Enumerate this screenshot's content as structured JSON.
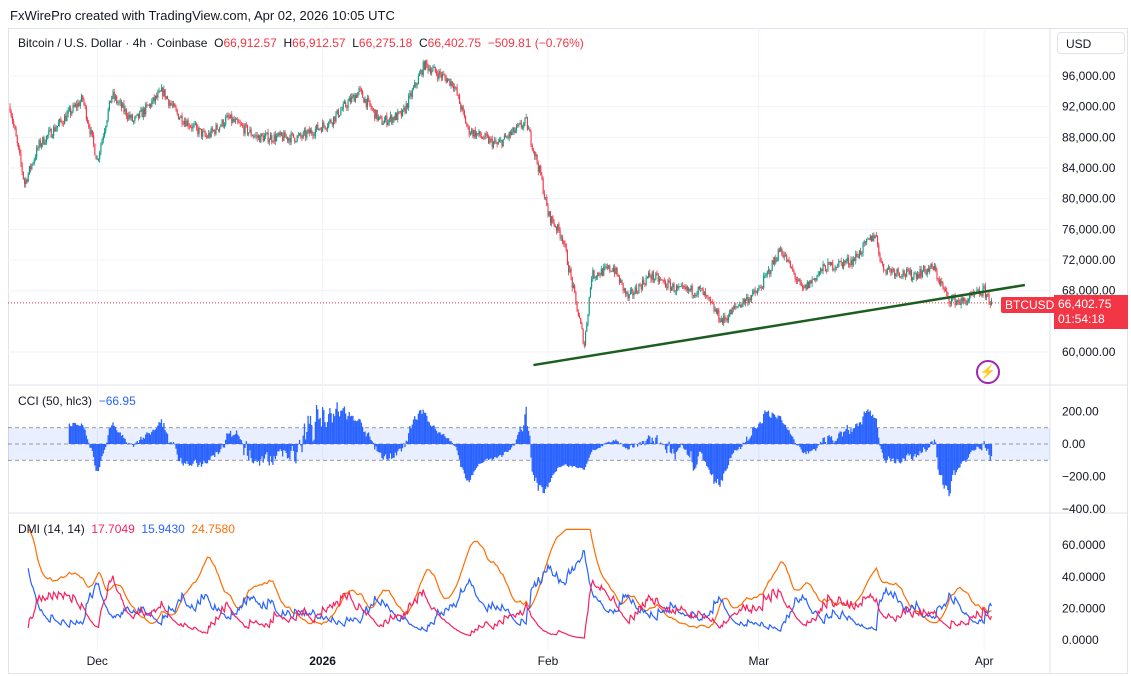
{
  "caption": "FxWirePro created with TradingView.com, Apr 02, 2026 10:05 UTC",
  "symbol": {
    "name": "Bitcoin / U.S. Dollar · 4h · Coinbase",
    "o_label": "O",
    "o": "66,912.57",
    "h_label": "H",
    "h": "66,912.57",
    "l_label": "L",
    "l": "66,275.18",
    "c_label": "C",
    "c": "66,402.75",
    "change": "−509.81 (−0.76%)"
  },
  "currency_button": "USD",
  "price_tag": {
    "ticker": "BTCUSD",
    "price": "66,402.75",
    "countdown": "01:54:18"
  },
  "colors": {
    "up": "#089981",
    "down": "#f23645",
    "cci": "#2962ff",
    "plus_di": "#f7215f",
    "minus_di": "#2962ff",
    "adx": "#ff6d00",
    "trendline": "#1b5e20"
  },
  "cci_legend": {
    "label": "CCI (50, hlc3)",
    "value": "−66.95"
  },
  "dmi_legend": {
    "label": "DMI (14, 14)",
    "plus": "17.7049",
    "minus": "15.9430",
    "adx": "24.7580"
  },
  "chart_data": [
    {
      "type": "candlestick",
      "title": "Bitcoin / U.S. Dollar · 4h",
      "x_unit": "days since Nov 19, 2025",
      "bars_per_day": 6,
      "price_path": [
        [
          0,
          92000
        ],
        [
          2,
          82000
        ],
        [
          4,
          87000
        ],
        [
          8,
          91000
        ],
        [
          10,
          93000
        ],
        [
          12,
          85000
        ],
        [
          14,
          93500
        ],
        [
          17,
          90000
        ],
        [
          21,
          94000
        ],
        [
          23,
          91000
        ],
        [
          27,
          88000
        ],
        [
          30,
          90500
        ],
        [
          34,
          88000
        ],
        [
          40,
          88000
        ],
        [
          44,
          90000
        ],
        [
          48,
          94000
        ],
        [
          51,
          90000
        ],
        [
          54,
          91000
        ],
        [
          57,
          97500
        ],
        [
          61,
          95000
        ],
        [
          63,
          89000
        ],
        [
          67,
          87000
        ],
        [
          71,
          90000
        ],
        [
          73,
          83000
        ],
        [
          74,
          78000
        ],
        [
          76,
          75000
        ],
        [
          79,
          61000
        ],
        [
          80,
          70000
        ],
        [
          83,
          71000
        ],
        [
          85,
          67000
        ],
        [
          88,
          70000
        ],
        [
          92,
          68000
        ],
        [
          95,
          68000
        ],
        [
          98,
          64000
        ],
        [
          100,
          66000
        ],
        [
          103,
          68000
        ],
        [
          106,
          73500
        ],
        [
          109,
          68000
        ],
        [
          112,
          71000
        ],
        [
          116,
          72000
        ],
        [
          119,
          75500
        ],
        [
          120,
          71000
        ],
        [
          124,
          70000
        ],
        [
          127,
          71000
        ],
        [
          129,
          67000
        ],
        [
          131,
          66500
        ],
        [
          134,
          68000
        ],
        [
          135,
          66402.75
        ]
      ],
      "trendline": [
        [
          72,
          58300
        ],
        [
          139.6,
          68740
        ]
      ],
      "y_ticks": [
        "96,000.00",
        "92,000.00",
        "88,000.00",
        "84,000.00",
        "80,000.00",
        "76,000.00",
        "72,000.00",
        "68,000.00",
        "60,000.00"
      ],
      "y_tick_values": [
        96000,
        92000,
        88000,
        84000,
        80000,
        76000,
        72000,
        68000,
        60000
      ],
      "x_ticks": [
        "Dec",
        "2026",
        "Feb",
        "Mar",
        "Apr"
      ],
      "x_tick_days": [
        12,
        43,
        74,
        103,
        134
      ]
    },
    {
      "type": "histogram",
      "title": "CCI (50, hlc3)",
      "bands": [
        100,
        -100
      ],
      "y_ticks": [
        "200.00",
        "0.00",
        "−200.00",
        "−400.00"
      ],
      "y_tick_values": [
        200,
        0,
        -200,
        -400
      ]
    },
    {
      "type": "line",
      "title": "DMI (14, 14)",
      "series": [
        "+DI",
        "−DI",
        "ADX"
      ],
      "y_ticks": [
        "60.0000",
        "40.0000",
        "20.0000",
        "0.0000"
      ],
      "y_tick_values": [
        60,
        40,
        20,
        0
      ]
    }
  ]
}
